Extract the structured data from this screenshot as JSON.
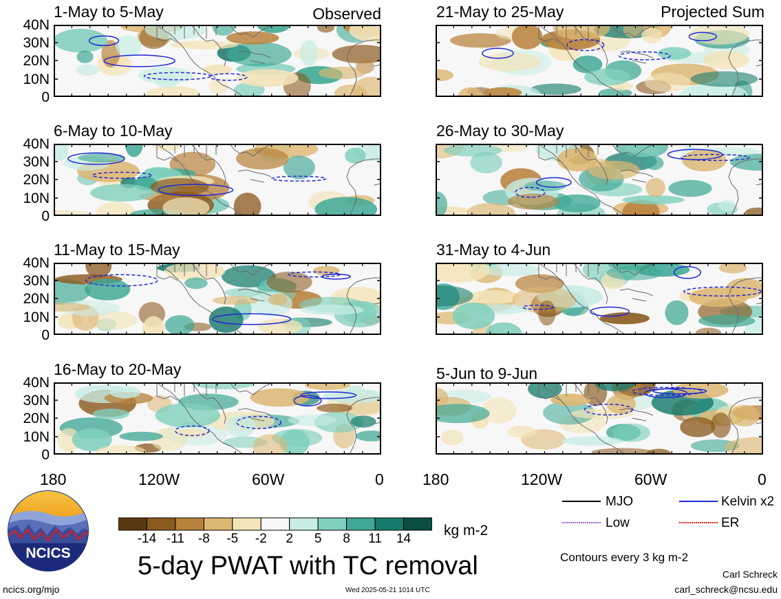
{
  "panels_left": [
    {
      "title": "1-May to 5-May",
      "corner": "Observed"
    },
    {
      "title": "6-May to 10-May",
      "corner": ""
    },
    {
      "title": "11-May to 15-May",
      "corner": ""
    },
    {
      "title": "16-May to 20-May",
      "corner": ""
    }
  ],
  "panels_right": [
    {
      "title": "21-May to 25-May",
      "corner": "Projected Sum"
    },
    {
      "title": "26-May to 30-May",
      "corner": ""
    },
    {
      "title": "31-May to 4-Jun",
      "corner": ""
    },
    {
      "title": "5-Jun to 9-Jun",
      "corner": ""
    }
  ],
  "lat_labels": [
    "40N",
    "30N",
    "20N",
    "10N",
    "0"
  ],
  "lon_labels": [
    "180",
    "120W",
    "60W",
    "0"
  ],
  "colorbar": {
    "ticks": [
      "-14",
      "-11",
      "-8",
      "-5",
      "-2",
      "2",
      "5",
      "8",
      "11",
      "14"
    ],
    "colors": [
      "#5a3a12",
      "#8b5a1f",
      "#b8823d",
      "#dcb773",
      "#f3e3b8",
      "#f7f7f7",
      "#c7ece4",
      "#7fcfbd",
      "#3fa896",
      "#157a6c",
      "#0a4d44"
    ],
    "units": "kg m-2"
  },
  "main_title": "5-day PWAT with TC removal",
  "legend": {
    "items": [
      {
        "label": "MJO",
        "color": "#000000"
      },
      {
        "label": "Kelvin x2",
        "color": "#1f28d6"
      },
      {
        "label": "Low",
        "color": "#9b5fd0"
      },
      {
        "label": "ER",
        "color": "#e01a1a"
      }
    ],
    "contour_note": "Contours every 3 kg m-2"
  },
  "logo_text": "NCICS",
  "footer": {
    "url": "ncics.org/mjo",
    "timestamp": "Wed 2025-05-21 1014 UTC",
    "author": "Carl Schreck",
    "email": "carl_schreck@ncsu.edu"
  }
}
